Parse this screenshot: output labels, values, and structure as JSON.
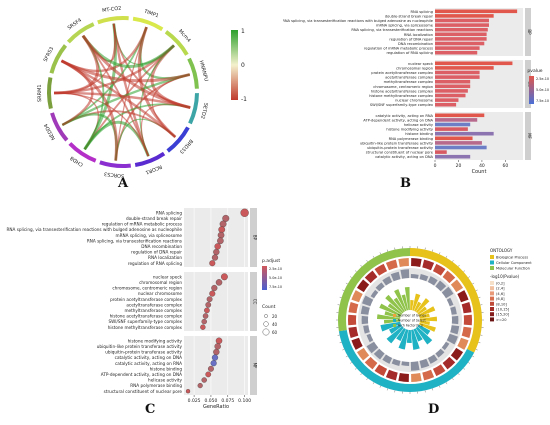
{
  "panel_labels": {
    "a": "A",
    "b": "B",
    "c": "C",
    "d": "D"
  },
  "chart_data": [
    {
      "panel": "A",
      "type": "chord",
      "genes": [
        "MT-CO2",
        "TIMP1",
        "Mcm4",
        "HNRNPU",
        "SETD2",
        "BRD33",
        "RCOR1",
        "SORCS3",
        "CHD8",
        "NEDD4",
        "SRRM1",
        "SFRS3",
        "SRSF4"
      ],
      "legend_title": "",
      "legend_ticks": [
        "1",
        "0",
        "-1"
      ],
      "colors": {
        "positive": "#2ca02c",
        "negative": "#c0392b",
        "segment_top": "#d9e84a",
        "segment_right": "#3b3fd4"
      }
    },
    {
      "panel": "B",
      "type": "bar",
      "orientation": "horizontal",
      "xlabel": "Count",
      "xticks": [
        0,
        20,
        40,
        60
      ],
      "xlim": [
        0,
        75
      ],
      "legend_title": "pvalue",
      "legend_ticks": [
        "2.5e-10",
        "5.0e-10",
        "7.5e-10"
      ],
      "groups": [
        {
          "facet": "BP",
          "categories": [
            "RNA splicing",
            "double-strand break repair",
            "RNA splicing, via transesterification reactions with bulged adenosine as nucleophile",
            "mRNA splicing, via spliceosome",
            "RNA splicing, via transesterification reactions",
            "RNA localization",
            "regulation of DNA repair",
            "DNA recombination",
            "regulation of mRNA metabolic process",
            "regulation of RNA splicing"
          ],
          "values": [
            70,
            50,
            46,
            46,
            45,
            44,
            44,
            42,
            38,
            36
          ]
        },
        {
          "facet": "CC",
          "categories": [
            "nuclear speck",
            "chromosomal region",
            "protein acetyltransferase complex",
            "acetyltransferase complex",
            "methyltransferase complex",
            "chromosome, centromeric region",
            "histone acetyltransferase complex",
            "histone methyltransferase complex",
            "nuclear chromosome",
            "SWI/SNF superfamily-type complex"
          ],
          "values": [
            66,
            50,
            38,
            38,
            30,
            30,
            28,
            26,
            20,
            18
          ]
        },
        {
          "facet": "MF",
          "categories": [
            "catalytic activity, acting on RNA",
            "ATP-dependent activity, acting on DNA",
            "helicase activity",
            "histone modifying activity",
            "histone binding",
            "RNA polymerase binding",
            "ubiquitin-like protein transferase activity",
            "ubiquitin-protein transferase activity",
            "structural constituent of nuclear pore",
            "catalytic activity, acting on DNA"
          ],
          "values": [
            42,
            36,
            30,
            28,
            50,
            32,
            40,
            44,
            10,
            30
          ]
        }
      ]
    },
    {
      "panel": "C",
      "type": "scatter",
      "xlabel": "GeneRatio",
      "xticks": [
        "0.025",
        "0.050",
        "0.075",
        "0.100"
      ],
      "xlim": [
        0.01,
        0.105
      ],
      "legend_title": "p.adjust",
      "legend_ticks": [
        "2.5e-10",
        "5.0e-10",
        "7.5e-10"
      ],
      "size_title": "Count",
      "size_ticks": [
        "20",
        "40",
        "60"
      ],
      "groups": [
        {
          "facet": "BP",
          "categories": [
            "RNA splicing",
            "double-strand break repair",
            "regulation of mRNA metabolic process",
            "RNA splicing, via transesterification reactions with bulged adenosine as nucleophile",
            "mRNA splicing, via spliceosome",
            "RNA splicing, via transesterification reactions",
            "DNA recombination",
            "regulation of DNA repair",
            "RNA localization",
            "regulation of RNA splicing"
          ],
          "x": [
            0.1,
            0.072,
            0.068,
            0.066,
            0.065,
            0.064,
            0.06,
            0.058,
            0.056,
            0.052
          ]
        },
        {
          "facet": "CC",
          "categories": [
            "nuclear speck",
            "chromosomal region",
            "chromosome, centromeric region",
            "nuclear chromosome",
            "protein acetyltransferase complex",
            "acetyltransferase complex",
            "methyltransferase complex",
            "histone acetyltransferase complex",
            "SWI/SNF superfamily-type complex",
            "histone methyltransferase complex"
          ],
          "x": [
            0.07,
            0.062,
            0.055,
            0.052,
            0.048,
            0.046,
            0.044,
            0.042,
            0.04,
            0.038
          ]
        },
        {
          "facet": "MF",
          "categories": [
            "histone modifying activity",
            "ubiquitin-like protein transferase activity",
            "ubiquitin-protein transferase activity",
            "catalytic activity, acting on DNA",
            "catalytic activity, acting on RNA",
            "histone binding",
            "ATP-dependent activity, acting on DNA",
            "helicase activity",
            "RNA polymerase binding",
            "structural constituent of nuclear pore"
          ],
          "x": [
            0.062,
            0.06,
            0.058,
            0.056,
            0.054,
            0.05,
            0.046,
            0.04,
            0.034,
            0.016
          ]
        }
      ]
    },
    {
      "panel": "D",
      "type": "circular",
      "legend_title": "ONTOLOGY",
      "ontologies": [
        "Biological Process",
        "Cellular Component",
        "Molecular Function"
      ],
      "ontology_colors": [
        "#e6c21a",
        "#1fb1c4",
        "#8fc34a"
      ],
      "pvalue_title": "-log10(Pvalue)",
      "pvalue_levels": [
        "(0,2]",
        "(2,4]",
        "(4,6]",
        "(6,8]",
        "(8,10]",
        "(10,15]",
        "(15,20]",
        ">=20"
      ],
      "center_legend": [
        "Number of Genes",
        "Number of Select",
        "Rich Factor(0-1)"
      ]
    }
  ]
}
